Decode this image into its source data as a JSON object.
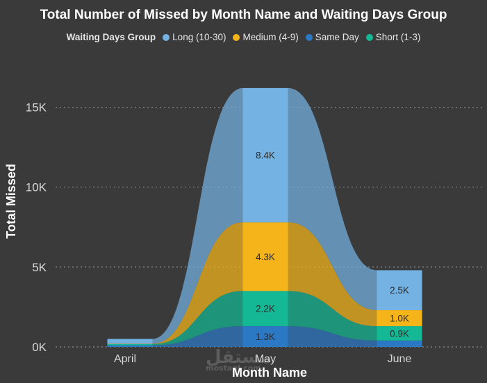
{
  "chart_data": {
    "type": "ribbon",
    "title": "Total Number of Missed by Month Name and Waiting Days Group",
    "xlabel": "Month Name",
    "ylabel": "Total Missed",
    "legend_title": "Waiting Days Group",
    "categories": [
      "April",
      "May",
      "June"
    ],
    "ylim": [
      0,
      16500
    ],
    "yticks": [
      0,
      5000,
      10000,
      15000
    ],
    "ytick_labels": [
      "0K",
      "5K",
      "10K",
      "15K"
    ],
    "grid": true,
    "series": [
      {
        "name": "Same Day",
        "color": "#2b78c5",
        "values": [
          100,
          1300,
          400
        ],
        "labels": [
          "",
          "1.3K",
          ""
        ]
      },
      {
        "name": "Short (1-3)",
        "color": "#14b894",
        "values": [
          80,
          2200,
          900
        ],
        "labels": [
          "",
          "2.2K",
          "0.9K"
        ]
      },
      {
        "name": "Medium (4-9)",
        "color": "#f5b51a",
        "values": [
          20,
          4300,
          1000
        ],
        "labels": [
          "",
          "4.3K",
          "1.0K"
        ]
      },
      {
        "name": "Long (10-30)",
        "color": "#73b2e2",
        "values": [
          300,
          8400,
          2500
        ],
        "labels": [
          "",
          "8.4K",
          "2.5K"
        ]
      }
    ],
    "legend_order": [
      "Long (10-30)",
      "Medium (4-9)",
      "Same Day",
      "Short (1-3)"
    ]
  },
  "watermark": {
    "text": "مستقل",
    "subtext": "mostaql.com"
  }
}
